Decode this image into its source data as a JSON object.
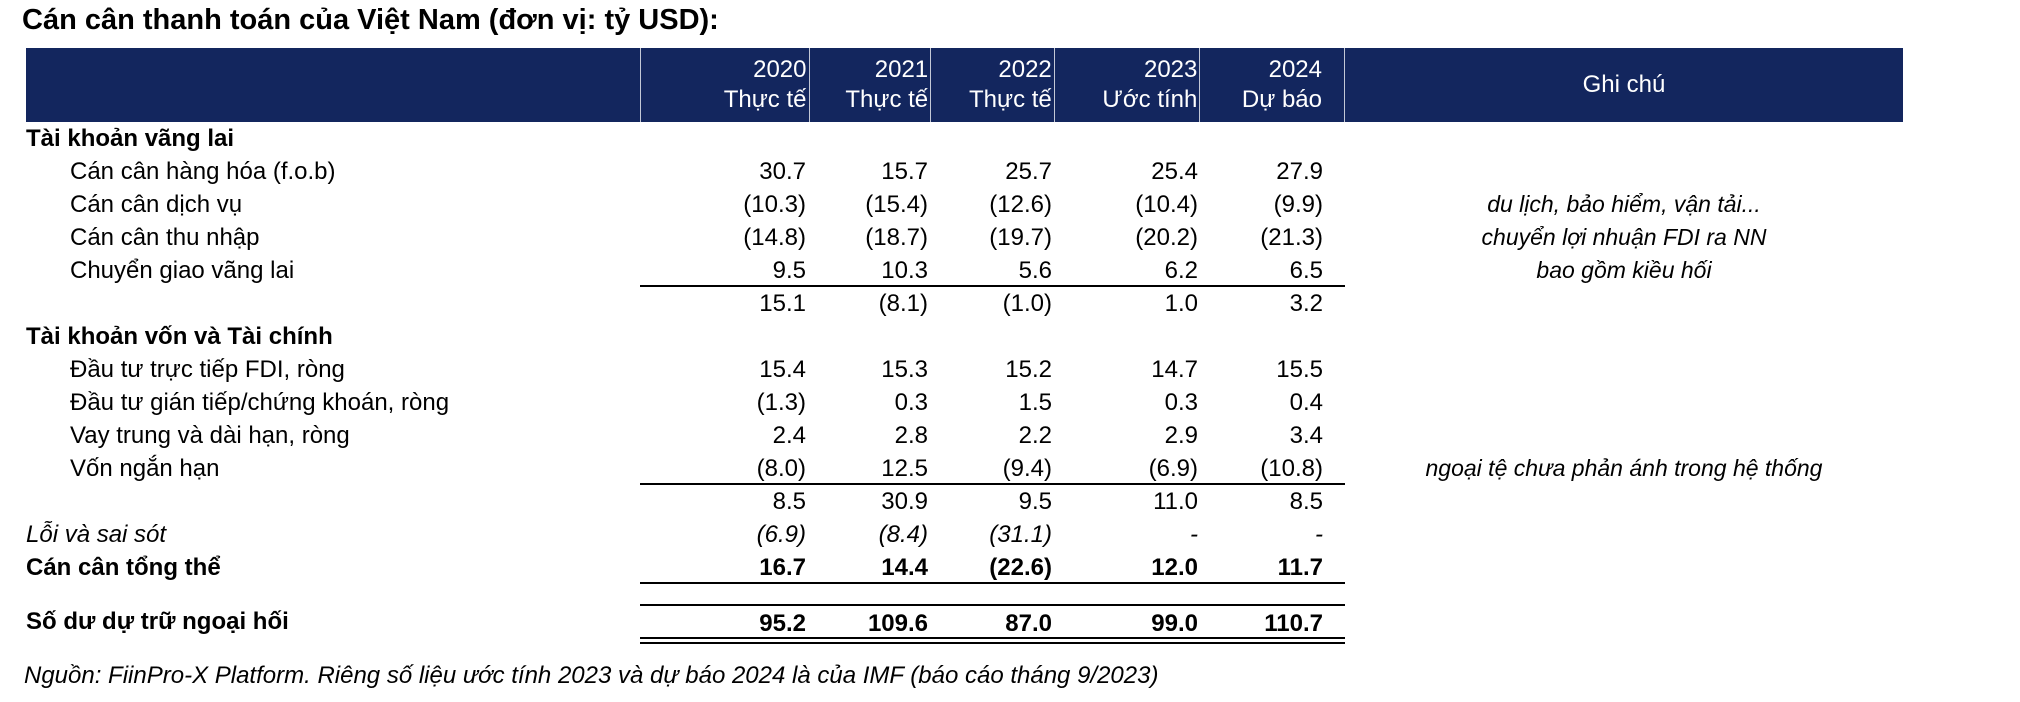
{
  "title": "Cán cân thanh toán của Việt Nam (đơn vị: tỷ USD):",
  "colors": {
    "header_bg": "#13265E",
    "header_text": "#FFFFFF",
    "body_text": "#000000"
  },
  "header": {
    "columns": [
      {
        "year": "2020",
        "label": "Thực tế"
      },
      {
        "year": "2021",
        "label": "Thực tế"
      },
      {
        "year": "2022",
        "label": "Thực tế"
      },
      {
        "year": "2023",
        "label": "Ước tính"
      },
      {
        "year": "2024",
        "label": "Dự báo"
      }
    ],
    "note_header": "Ghi chú"
  },
  "rows": [
    {
      "label": "Tài khoản vãng lai",
      "style": "section",
      "values": [
        "",
        "",
        "",
        "",
        ""
      ],
      "note": ""
    },
    {
      "label": "Cán cân hàng hóa (f.o.b)",
      "style": "sub",
      "values": [
        "30.7",
        "15.7",
        "25.7",
        "25.4",
        "27.9"
      ],
      "note": ""
    },
    {
      "label": "Cán cân dịch vụ",
      "style": "sub",
      "values": [
        "(10.3)",
        "(15.4)",
        "(12.6)",
        "(10.4)",
        "(9.9)"
      ],
      "note": "du lịch, bảo hiểm, vận tải..."
    },
    {
      "label": "Cán cân thu nhập",
      "style": "sub",
      "values": [
        "(14.8)",
        "(18.7)",
        "(19.7)",
        "(20.2)",
        "(21.3)"
      ],
      "note": "chuyển lợi nhuận FDI ra NN"
    },
    {
      "label": "Chuyển giao vãng lai",
      "style": "sub rule",
      "values": [
        "9.5",
        "10.3",
        "5.6",
        "6.2",
        "6.5"
      ],
      "note": "bao gồm kiều hối"
    },
    {
      "label": "",
      "style": "subtotal",
      "values": [
        "15.1",
        "(8.1)",
        "(1.0)",
        "1.0",
        "3.2"
      ],
      "note": ""
    },
    {
      "label": "Tài khoản vốn và Tài chính",
      "style": "section",
      "values": [
        "",
        "",
        "",
        "",
        ""
      ],
      "note": ""
    },
    {
      "label": "Đầu tư trực tiếp FDI, ròng",
      "style": "sub",
      "values": [
        "15.4",
        "15.3",
        "15.2",
        "14.7",
        "15.5"
      ],
      "note": ""
    },
    {
      "label": "Đầu tư gián tiếp/chứng khoán, ròng",
      "style": "sub",
      "values": [
        "(1.3)",
        "0.3",
        "1.5",
        "0.3",
        "0.4"
      ],
      "note": ""
    },
    {
      "label": "Vay trung và dài hạn, ròng",
      "style": "sub",
      "values": [
        "2.4",
        "2.8",
        "2.2",
        "2.9",
        "3.4"
      ],
      "note": ""
    },
    {
      "label": "Vốn ngắn hạn",
      "style": "sub rule",
      "values": [
        "(8.0)",
        "12.5",
        "(9.4)",
        "(6.9)",
        "(10.8)"
      ],
      "note": "ngoại tệ chưa phản ánh trong hệ thống"
    },
    {
      "label": "",
      "style": "subtotal",
      "values": [
        "8.5",
        "30.9",
        "9.5",
        "11.0",
        "8.5"
      ],
      "note": ""
    },
    {
      "label": "Lỗi và sai sót",
      "style": "italic",
      "values": [
        "(6.9)",
        "(8.4)",
        "(31.1)",
        "-",
        "-"
      ],
      "note": ""
    },
    {
      "label": "Cán cân tổng thể",
      "style": "total rule",
      "values": [
        "16.7",
        "14.4",
        "(22.6)",
        "12.0",
        "11.7"
      ],
      "note": ""
    },
    {
      "label": "",
      "style": "spacer",
      "values": [
        "",
        "",
        "",
        "",
        ""
      ],
      "note": ""
    },
    {
      "label": "Số dư dự trữ ngoại hối",
      "style": "reserve",
      "values": [
        "95.2",
        "109.6",
        "87.0",
        "99.0",
        "110.7"
      ],
      "note": ""
    }
  ],
  "source": "Nguồn: FiinPro-X Platform. Riêng số liệu ước tính 2023 và dự báo 2024 là của IMF (báo cáo tháng 9/2023)"
}
